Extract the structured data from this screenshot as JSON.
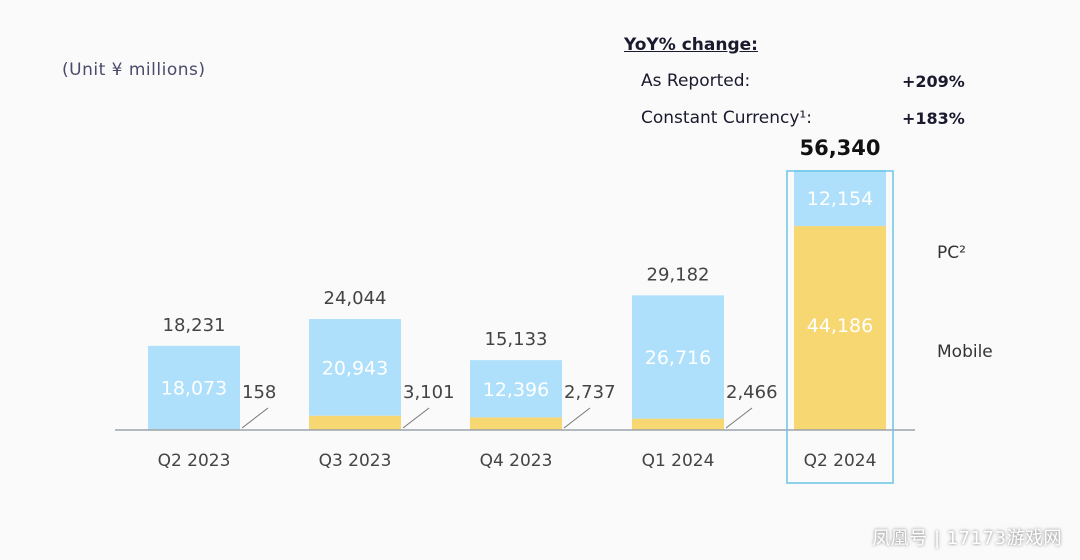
{
  "unit_label": "(Unit ¥ millions)",
  "yoy": {
    "title": "YoY% change:",
    "rows": [
      {
        "label": "As Reported:",
        "value": "+209%"
      },
      {
        "label": "Constant Currency¹:",
        "value": "+183%"
      }
    ]
  },
  "watermark": "凤凰号 | 17173游戏网",
  "colors": {
    "pc": "#aee0fb",
    "mobile": "#f7d772",
    "highlight_border": "#6bc6e6",
    "axis": "#9aa3ad",
    "text": "#444444"
  },
  "chart_data": {
    "type": "bar",
    "stacked": true,
    "categories": [
      "Q2 2023",
      "Q3 2023",
      "Q4 2023",
      "Q1 2024",
      "Q2 2024"
    ],
    "series": [
      {
        "name": "Mobile",
        "values": [
          158,
          3101,
          2737,
          2466,
          44186
        ]
      },
      {
        "name": "PC²",
        "values": [
          18073,
          20943,
          12396,
          26716,
          12154
        ]
      }
    ],
    "totals": [
      "18,231",
      "24,044",
      "15,133",
      "29,182",
      "56,340"
    ],
    "pc_labels": [
      "18,073",
      "20,943",
      "12,396",
      "26,716",
      "12,154"
    ],
    "mobile_labels": [
      "158",
      "3,101",
      "2,737",
      "2,466",
      "44,186"
    ],
    "highlight_category": "Q2 2024",
    "legend": [
      "PC²",
      "Mobile"
    ],
    "legend_position": "right",
    "ylim": [
      0,
      60000
    ],
    "grid": false
  }
}
